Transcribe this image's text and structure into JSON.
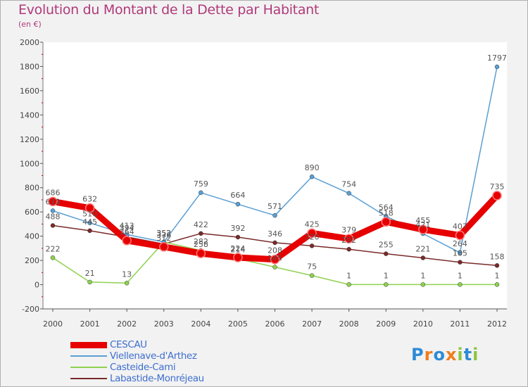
{
  "title": "Evolution du Montant de la Dette par Habitant",
  "subtitle": "(en €)",
  "logo": {
    "text": "Proxiti",
    "letters": [
      {
        "ch": "P",
        "color": "#2e8bd6"
      },
      {
        "ch": "r",
        "color": "#f07d1a"
      },
      {
        "ch": "o",
        "color": "#2e8bd6"
      },
      {
        "ch": "x",
        "color": "#f07d1a"
      },
      {
        "ch": "i",
        "color": "#8dc63f"
      },
      {
        "ch": "t",
        "color": "#2e8bd6"
      },
      {
        "ch": "i",
        "color": "#8dc63f"
      }
    ]
  },
  "chart_data": {
    "type": "line",
    "title": "Evolution du Montant de la Dette par Habitant",
    "ylabel": "(en €)",
    "xlabel": "",
    "ylim": [
      -200,
      2000
    ],
    "yticks": [
      -200,
      0,
      200,
      400,
      600,
      800,
      1000,
      1200,
      1400,
      1600,
      1800,
      2000
    ],
    "categories": [
      "2000",
      "2001",
      "2002",
      "2003",
      "2004",
      "2005",
      "2006",
      "2007",
      "2008",
      "2009",
      "2010",
      "2011",
      "2012"
    ],
    "legend_position": "bottom-left",
    "grid": false,
    "series": [
      {
        "name": "CESCAU",
        "color": "#e60000",
        "values": [
          686,
          632,
          364,
          312,
          258,
          224,
          208,
          425,
          379,
          518,
          455,
          407,
          735
        ]
      },
      {
        "name": "Viellenave-d'Arthez",
        "color": "#5a9fd4",
        "values": [
          610,
          510,
          413,
          352,
          759,
          664,
          571,
          890,
          754,
          564,
          421,
          264,
          1797
        ]
      },
      {
        "name": "Casteide-Cami",
        "color": "#8fd14f",
        "values": [
          222,
          21,
          13,
          352,
          282,
          214,
          145,
          75,
          1,
          1,
          1,
          1,
          1
        ]
      },
      {
        "name": "Labastide-Monréjeau",
        "color": "#7a2a2a",
        "values": [
          488,
          445,
          394,
          336,
          422,
          392,
          346,
          320,
          292,
          255,
          221,
          185,
          158
        ]
      }
    ],
    "data_labels": {
      "CESCAU": [
        "686",
        "632",
        "364",
        "312",
        "258",
        "224",
        "208",
        "425",
        "379",
        "518",
        "455",
        "407",
        "735"
      ],
      "Viellenave-d'Arthez": [
        "610",
        "510",
        "413",
        "352",
        "759",
        "664",
        "571",
        "890",
        "754",
        "564",
        "421",
        "264",
        "1797"
      ],
      "Casteide-Cami": [
        "222",
        "21",
        "13",
        "352",
        "282",
        "214",
        "145",
        "75",
        "1",
        "1",
        "1",
        "1",
        "1"
      ],
      "Labastide-Monréjeau": [
        "488",
        "445",
        "394",
        "336",
        "422",
        "392",
        "346",
        "320",
        "292",
        "255",
        "221",
        "185",
        "158"
      ]
    }
  }
}
